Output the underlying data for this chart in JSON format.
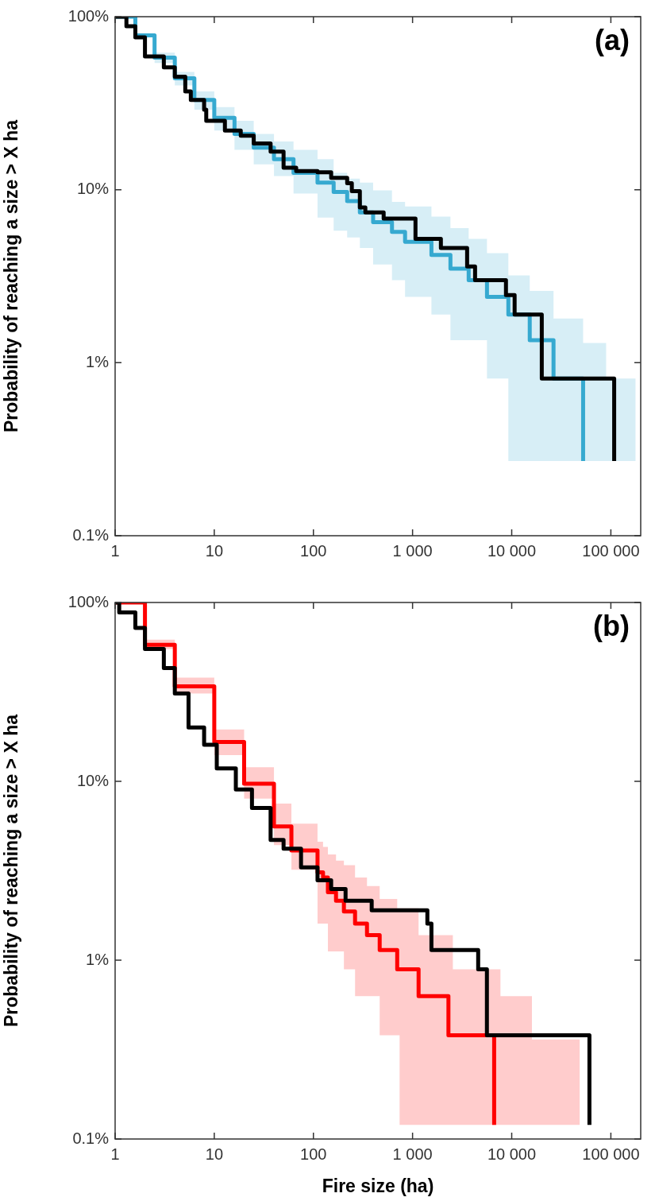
{
  "chart_data": [
    {
      "type": "step",
      "annotations": [
        "(a)"
      ],
      "ylabel": "Probability of reaching a size > X ha",
      "log": "xy",
      "xlim": [
        1,
        200000
      ],
      "ylim": [
        0.1,
        100
      ],
      "xticks": [
        1,
        10,
        100,
        {
          "value": 1000,
          "label": "1 000"
        },
        {
          "value": 10000,
          "label": "10 000"
        },
        {
          "value": 100000,
          "label": "100 000"
        }
      ],
      "yticks": [
        {
          "value": 0.1,
          "label": "0.1%"
        },
        {
          "value": 1,
          "label": "1%"
        },
        {
          "value": 10,
          "label": "10%"
        },
        {
          "value": 100,
          "label": "100%"
        }
      ],
      "series": [
        {
          "color": "#36a9d0",
          "x": [
            1,
            1.6,
            2.5,
            4,
            6.3,
            10,
            16,
            25,
            40,
            63,
            110,
            160,
            219,
            294,
            400,
            620,
            840,
            1550,
            2410,
            3680,
            5630,
            9250,
            15200,
            26400,
            52500,
            89600,
            178000
          ],
          "values": [
            100,
            78,
            58,
            44,
            33,
            26,
            21,
            17.5,
            15,
            12.5,
            11.0,
            9.7,
            8.6,
            7.4,
            6.5,
            5.7,
            5.0,
            4.2,
            3.5,
            3.0,
            2.4,
            1.9,
            1.35,
            0.81,
            0.27,
            null,
            null
          ],
          "upper": [
            100,
            80,
            62,
            48,
            37,
            30,
            25,
            21,
            19,
            17,
            15,
            12.5,
            11.6,
            11,
            9.9,
            8.5,
            8.0,
            7.0,
            6.0,
            5.2,
            4.3,
            3.2,
            2.6,
            1.8,
            1.3,
            0.81,
            0.81
          ],
          "lower": [
            100,
            76,
            54,
            40,
            29,
            22,
            17,
            14,
            12,
            9.5,
            6.9,
            5.8,
            5.3,
            4.6,
            3.7,
            3.0,
            2.4,
            1.9,
            1.35,
            1.35,
            0.81,
            0.27,
            0.27,
            0.27,
            0.27,
            0.27,
            0.27
          ]
        },
        {
          "color": "#000000",
          "x": [
            1,
            1.3,
            1.6,
            2.0,
            3.1,
            4.0,
            5.1,
            5.8,
            7.9,
            8.3,
            12.8,
            18.5,
            25,
            37,
            50,
            67,
            110,
            151,
            219,
            244,
            294,
            334,
            511,
            1070,
            1930,
            3550,
            4270,
            8750,
            10700,
            20100,
            108000
          ],
          "values": [
            100,
            88,
            76,
            59,
            51,
            45,
            37,
            33,
            29,
            25,
            22,
            20.5,
            18.5,
            16.6,
            13.4,
            12.8,
            12.6,
            11.7,
            10.9,
            9.8,
            7.9,
            7.4,
            6.8,
            5.2,
            4.6,
            3.6,
            3.0,
            2.46,
            1.9,
            0.81,
            0.27
          ]
        }
      ]
    },
    {
      "type": "step",
      "annotations": [
        "(b)"
      ],
      "xlabel": "Fire size (ha)",
      "ylabel": "Probability of reaching a size > X ha",
      "log": "xy",
      "xlim": [
        1,
        200000
      ],
      "ylim": [
        0.1,
        100
      ],
      "xticks": [
        1,
        10,
        100,
        {
          "value": 1000,
          "label": "1 000"
        },
        {
          "value": 10000,
          "label": "10 000"
        },
        {
          "value": 100000,
          "label": "100 000"
        }
      ],
      "yticks": [
        {
          "value": 0.1,
          "label": "0.1%"
        },
        {
          "value": 1,
          "label": "1%"
        },
        {
          "value": 10,
          "label": "10%"
        },
        {
          "value": 100,
          "label": "100%"
        }
      ],
      "series": [
        {
          "color": "#ff0000",
          "x": [
            1,
            2,
            4,
            10,
            20,
            40,
            60,
            110,
            125,
            140,
            169,
            203,
            263,
            347,
            466,
            700,
            740,
            1150,
            2300,
            2550,
            6650,
            7700,
            16000,
            48700
          ],
          "values": [
            100,
            58,
            34,
            16.6,
            9.7,
            5.6,
            4.1,
            3.1,
            2.9,
            2.4,
            2.15,
            1.87,
            1.6,
            1.38,
            1.14,
            0.89,
            null,
            0.63,
            0.38,
            null,
            0.12,
            null,
            null,
            null
          ],
          "upper": [
            100,
            62,
            38,
            19.5,
            12,
            7.5,
            5.8,
            4.6,
            4.3,
            3.9,
            3.6,
            3.4,
            2.9,
            2.6,
            2.2,
            1.95,
            1.95,
            1.38,
            1.38,
            0.89,
            0.89,
            0.63,
            0.36,
            0.36
          ],
          "lower": [
            100,
            55,
            31,
            14,
            8,
            4.4,
            3.2,
            1.6,
            1.6,
            1.12,
            1.12,
            0.89,
            0.63,
            0.63,
            0.38,
            0.38,
            0.12,
            0.12,
            0.12,
            0.12,
            0.12,
            0.12,
            0.12,
            0.12
          ]
        },
        {
          "color": "#000000",
          "x": [
            1,
            1.1,
            1.6,
            2.0,
            3.1,
            4.0,
            5.5,
            7.9,
            10.6,
            16.5,
            24,
            37,
            50,
            75,
            110,
            151,
            211,
            387,
            1410,
            1550,
            4590,
            5620,
            60800
          ],
          "values": [
            100,
            88,
            72,
            55,
            43,
            31,
            20,
            16,
            11.8,
            9.0,
            7.1,
            4.7,
            4.2,
            3.3,
            2.8,
            2.5,
            2.15,
            1.9,
            1.6,
            1.14,
            0.89,
            0.38,
            0.12
          ]
        }
      ]
    }
  ]
}
